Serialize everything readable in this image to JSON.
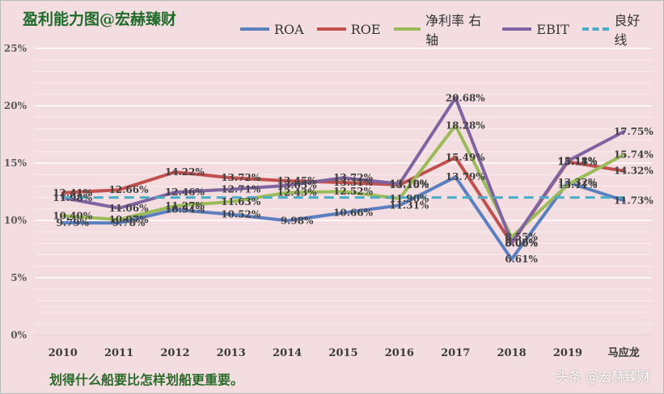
{
  "header": {
    "title": "盈利能力图@宏赫臻财"
  },
  "footer": {
    "note": "划得什么船要比怎样划船更重要。",
    "watermark": "头条 @宏赫臻财"
  },
  "chart_data": {
    "type": "line",
    "title": "盈利能力图@宏赫臻财",
    "xlabel": "",
    "ylabel": "",
    "ylim": [
      0,
      25
    ],
    "yticks": [
      "0%",
      "5%",
      "10%",
      "15%",
      "20%",
      "25%"
    ],
    "yticks_values": [
      0,
      5,
      10,
      15,
      20,
      25
    ],
    "categories": [
      "2010",
      "2011",
      "2012",
      "2013",
      "2014",
      "2015",
      "2016",
      "2017",
      "2018",
      "2019",
      "马应龙"
    ],
    "legend_position": "top",
    "series": [
      {
        "name": "ROA",
        "color": "#5b7fbf",
        "dashed": false,
        "values": [
          9.79,
          9.78,
          10.94,
          10.52,
          9.98,
          10.66,
          11.31,
          13.79,
          6.61,
          13.32,
          11.73
        ],
        "labels": [
          "9.79%",
          "9.78%",
          "10.94%",
          "10.52%",
          "9.98%",
          "10.66%",
          "11.31%",
          "13.79%",
          "6.61%",
          "13.32%",
          "11.73%"
        ]
      },
      {
        "name": "ROE",
        "color": "#c0504d",
        "dashed": false,
        "values": [
          12.41,
          12.66,
          14.22,
          13.72,
          13.45,
          13.31,
          13.1,
          15.49,
          8.0,
          15.11,
          14.32
        ],
        "labels": [
          "12.41%",
          "12.66%",
          "14.22%",
          "13.72%",
          "13.45%",
          "13.31%",
          "13.10%",
          "15.49%",
          "8.00%",
          "15.11%",
          "14.32%"
        ]
      },
      {
        "name": "净利率 右轴",
        "color": "#9bbb59",
        "dashed": false,
        "values": [
          10.4,
          10.07,
          11.27,
          11.63,
          12.43,
          12.52,
          11.9,
          18.28,
          8.55,
          13.11,
          15.74
        ],
        "labels": [
          "10.40%",
          "10.07%",
          "11.27%",
          "11.63%",
          "12.43%",
          "12.52%",
          "11.90%",
          "18.28%",
          "8.55%",
          "13.11%",
          "15.74%"
        ]
      },
      {
        "name": "EBIT",
        "color": "#8064a2",
        "dashed": false,
        "values": [
          11.98,
          11.06,
          12.46,
          12.71,
          13.05,
          13.72,
          13.19,
          20.68,
          8.06,
          15.18,
          17.75
        ],
        "labels": [
          "11.98%",
          "11.06%",
          "12.46%",
          "12.71%",
          "13.05%",
          "13.72%",
          "13.19%",
          "20.68%",
          "8.06%",
          "15.18%",
          "17.75%"
        ]
      },
      {
        "name": "良好线",
        "color": "#4bacc6",
        "dashed": true,
        "values": [
          12,
          12,
          12,
          12,
          12,
          12,
          12,
          12,
          12,
          12,
          12
        ],
        "labels": []
      }
    ]
  }
}
